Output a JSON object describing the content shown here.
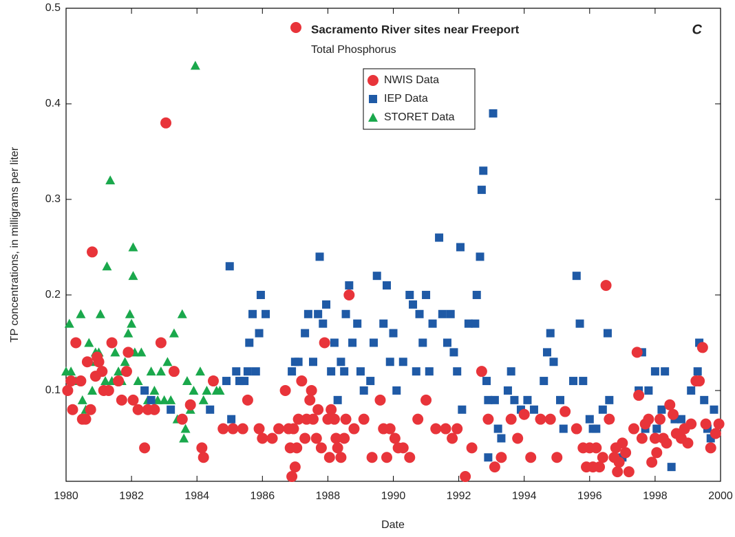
{
  "chart_data": {
    "type": "scatter",
    "title": "Sacramento River sites near Freeport",
    "subtitle": "Total Phosphorus",
    "panel_label": "C",
    "x_label": "Date",
    "y_label": "TP concentrations, in milligrams per liter",
    "xlim": [
      1980,
      2000
    ],
    "xticks": [
      1980,
      1982,
      1984,
      1986,
      1988,
      1990,
      1992,
      1994,
      1996,
      1998,
      2000
    ],
    "ylim": [
      0.005,
      0.5
    ],
    "yticks": [
      0.1,
      0.2,
      0.3,
      0.4,
      0.5
    ],
    "legend": "upper center",
    "series": [
      {
        "name": "NWIS Data",
        "color": "#e8343a",
        "marker": "circle",
        "x": [
          1980.05,
          1980.15,
          1980.2,
          1980.3,
          1980.45,
          1980.5,
          1980.6,
          1980.65,
          1980.75,
          1980.8,
          1980.9,
          1980.95,
          1981.0,
          1981.1,
          1981.15,
          1981.3,
          1981.4,
          1981.6,
          1981.7,
          1981.85,
          1981.9,
          1982.05,
          1982.2,
          1982.4,
          1982.5,
          1982.7,
          1982.9,
          1983.05,
          1983.3,
          1983.55,
          1983.8,
          1984.15,
          1984.2,
          1984.5,
          1984.8,
          1985.1,
          1985.4,
          1985.55,
          1985.9,
          1986.0,
          1986.3,
          1986.5,
          1986.7,
          1986.8,
          1986.85,
          1986.9,
          1986.95,
          1987.0,
          1987.05,
          1987.1,
          1987.2,
          1987.3,
          1987.35,
          1987.45,
          1987.5,
          1987.55,
          1987.65,
          1987.7,
          1987.8,
          1987.9,
          1988.0,
          1988.05,
          1988.1,
          1988.2,
          1988.25,
          1988.3,
          1988.4,
          1988.5,
          1988.55,
          1988.65,
          1988.8,
          1989.1,
          1989.35,
          1989.6,
          1989.7,
          1989.8,
          1989.9,
          1990.05,
          1990.15,
          1990.3,
          1990.5,
          1990.75,
          1991.0,
          1991.3,
          1991.6,
          1991.8,
          1991.95,
          1992.2,
          1992.4,
          1992.7,
          1992.9,
          1993.1,
          1993.3,
          1993.6,
          1993.8,
          1994.0,
          1994.2,
          1994.5,
          1994.8,
          1995.0,
          1995.25,
          1995.6,
          1995.8,
          1995.9,
          1996.0,
          1996.1,
          1996.2,
          1996.3,
          1996.4,
          1996.5,
          1996.6,
          1996.75,
          1996.8,
          1996.85,
          1996.9,
          1997.0,
          1997.1,
          1997.2,
          1997.35,
          1997.45,
          1997.5,
          1997.6,
          1997.7,
          1997.8,
          1997.9,
          1998.0,
          1998.05,
          1998.15,
          1998.25,
          1998.35,
          1998.45,
          1998.55,
          1998.65,
          1998.8,
          1998.9,
          1999.0,
          1999.1,
          1999.25,
          1999.35,
          1999.45,
          1999.55,
          1999.7,
          1999.85,
          1999.95
        ],
        "values": [
          0.1,
          0.11,
          0.08,
          0.15,
          0.11,
          0.07,
          0.07,
          0.13,
          0.08,
          0.245,
          0.115,
          0.135,
          0.13,
          0.12,
          0.1,
          0.1,
          0.15,
          0.11,
          0.09,
          0.12,
          0.14,
          0.09,
          0.08,
          0.04,
          0.08,
          0.08,
          0.15,
          0.38,
          0.12,
          0.07,
          0.085,
          0.04,
          0.03,
          0.11,
          0.06,
          0.06,
          0.06,
          0.09,
          0.06,
          0.05,
          0.05,
          0.06,
          0.1,
          0.06,
          0.04,
          0.01,
          0.06,
          0.02,
          0.04,
          0.07,
          0.11,
          0.05,
          0.07,
          0.09,
          0.1,
          0.07,
          0.05,
          0.08,
          0.04,
          0.15,
          0.07,
          0.03,
          0.08,
          0.07,
          0.05,
          0.04,
          0.03,
          0.05,
          0.07,
          0.2,
          0.06,
          0.07,
          0.03,
          0.09,
          0.06,
          0.03,
          0.06,
          0.05,
          0.04,
          0.04,
          0.03,
          0.07,
          0.09,
          0.06,
          0.06,
          0.05,
          0.06,
          0.01,
          0.04,
          0.12,
          0.07,
          0.02,
          0.03,
          0.07,
          0.05,
          0.075,
          0.03,
          0.07,
          0.07,
          0.03,
          0.078,
          0.06,
          0.04,
          0.02,
          0.04,
          0.02,
          0.04,
          0.02,
          0.03,
          0.21,
          0.07,
          0.03,
          0.04,
          0.015,
          0.025,
          0.045,
          0.035,
          0.015,
          0.06,
          0.14,
          0.095,
          0.05,
          0.065,
          0.07,
          0.025,
          0.05,
          0.035,
          0.07,
          0.05,
          0.045,
          0.085,
          0.075,
          0.055,
          0.05,
          0.06,
          0.045,
          0.065,
          0.11,
          0.11,
          0.145,
          0.065,
          0.04,
          0.055,
          0.065
        ]
      },
      {
        "name": "IEP Data",
        "color": "#1f5aa6",
        "marker": "square",
        "x": [
          1982.4,
          1982.6,
          1983.2,
          1984.4,
          1984.5,
          1984.9,
          1985.0,
          1985.05,
          1985.2,
          1985.3,
          1985.45,
          1985.55,
          1985.6,
          1985.7,
          1985.8,
          1985.9,
          1985.95,
          1986.1,
          1986.9,
          1987.0,
          1987.1,
          1987.3,
          1987.4,
          1987.55,
          1987.7,
          1987.75,
          1987.85,
          1987.95,
          1988.1,
          1988.2,
          1988.3,
          1988.4,
          1988.5,
          1988.55,
          1988.65,
          1988.75,
          1988.9,
          1989.0,
          1989.1,
          1989.3,
          1989.4,
          1989.5,
          1989.7,
          1989.8,
          1989.9,
          1990.0,
          1990.1,
          1990.3,
          1990.5,
          1990.6,
          1990.7,
          1990.8,
          1990.9,
          1991.0,
          1991.1,
          1991.2,
          1991.4,
          1991.5,
          1991.65,
          1991.75,
          1991.85,
          1991.95,
          1992.05,
          1992.1,
          1992.3,
          1992.5,
          1992.55,
          1992.65,
          1992.7,
          1992.75,
          1992.85,
          1992.9,
          1992.9,
          1993.05,
          1993.1,
          1993.2,
          1993.3,
          1993.5,
          1993.6,
          1993.7,
          1993.9,
          1994.1,
          1994.3,
          1994.6,
          1994.7,
          1994.8,
          1994.9,
          1995.1,
          1995.2,
          1995.5,
          1995.6,
          1995.7,
          1995.8,
          1996.0,
          1996.1,
          1996.2,
          1996.4,
          1996.55,
          1996.6,
          1997.0,
          1997.5,
          1997.6,
          1997.7,
          1997.8,
          1998.0,
          1998.05,
          1998.2,
          1998.3,
          1998.5,
          1998.6,
          1998.8,
          1998.9,
          1999.1,
          1999.3,
          1999.35,
          1999.5,
          1999.6,
          1999.7,
          1999.8
        ],
        "values": [
          0.1,
          0.09,
          0.08,
          0.08,
          0.11,
          0.11,
          0.23,
          0.07,
          0.12,
          0.11,
          0.11,
          0.12,
          0.15,
          0.18,
          0.12,
          0.16,
          0.2,
          0.18,
          0.12,
          0.13,
          0.13,
          0.16,
          0.18,
          0.13,
          0.18,
          0.24,
          0.17,
          0.19,
          0.12,
          0.15,
          0.09,
          0.13,
          0.12,
          0.18,
          0.21,
          0.15,
          0.17,
          0.12,
          0.1,
          0.11,
          0.15,
          0.22,
          0.17,
          0.21,
          0.13,
          0.16,
          0.1,
          0.13,
          0.2,
          0.19,
          0.12,
          0.18,
          0.15,
          0.2,
          0.12,
          0.17,
          0.26,
          0.18,
          0.15,
          0.18,
          0.14,
          0.12,
          0.25,
          0.08,
          0.17,
          0.17,
          0.2,
          0.24,
          0.31,
          0.33,
          0.11,
          0.09,
          0.03,
          0.39,
          0.09,
          0.06,
          0.05,
          0.1,
          0.12,
          0.09,
          0.08,
          0.09,
          0.08,
          0.11,
          0.14,
          0.16,
          0.13,
          0.09,
          0.06,
          0.11,
          0.22,
          0.17,
          0.11,
          0.07,
          0.06,
          0.06,
          0.08,
          0.16,
          0.09,
          0.03,
          0.1,
          0.14,
          0.06,
          0.1,
          0.12,
          0.06,
          0.08,
          0.12,
          0.02,
          0.07,
          0.07,
          0.06,
          0.1,
          0.12,
          0.15,
          0.09,
          0.06,
          0.05,
          0.08
        ]
      },
      {
        "name": "STORET Data",
        "color": "#1aa84c",
        "marker": "triangle",
        "x": [
          1980.0,
          1980.1,
          1980.15,
          1980.3,
          1980.45,
          1980.5,
          1980.6,
          1980.7,
          1980.75,
          1980.8,
          1980.9,
          1981.0,
          1981.05,
          1981.2,
          1981.25,
          1981.35,
          1981.4,
          1981.5,
          1981.6,
          1981.7,
          1981.8,
          1981.9,
          1981.95,
          1982.0,
          1982.05,
          1982.05,
          1982.1,
          1982.2,
          1982.3,
          1982.5,
          1982.6,
          1982.7,
          1982.8,
          1982.9,
          1983.0,
          1983.1,
          1983.2,
          1983.3,
          1983.4,
          1983.55,
          1983.6,
          1983.65,
          1983.7,
          1983.8,
          1983.9,
          1983.95,
          1984.1,
          1984.2,
          1984.3,
          1984.6,
          1984.7
        ],
        "values": [
          0.12,
          0.17,
          0.12,
          0.11,
          0.18,
          0.09,
          0.08,
          0.15,
          0.13,
          0.1,
          0.14,
          0.14,
          0.18,
          0.11,
          0.23,
          0.32,
          0.11,
          0.14,
          0.12,
          0.11,
          0.13,
          0.16,
          0.18,
          0.17,
          0.25,
          0.22,
          0.14,
          0.11,
          0.14,
          0.09,
          0.12,
          0.1,
          0.09,
          0.12,
          0.09,
          0.13,
          0.09,
          0.16,
          0.07,
          0.18,
          0.05,
          0.06,
          0.11,
          0.08,
          0.1,
          0.44,
          0.12,
          0.09,
          0.1,
          0.1,
          0.1
        ]
      }
    ]
  }
}
